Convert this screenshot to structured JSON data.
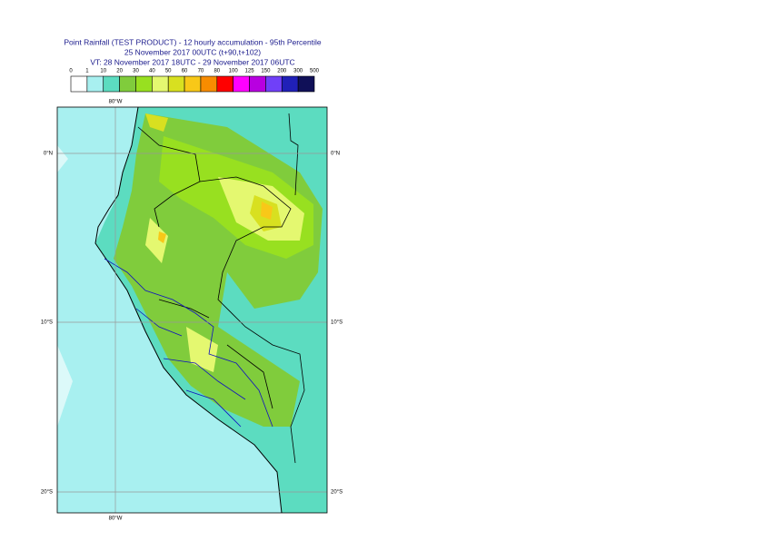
{
  "header": {
    "lines": [
      "Point Rainfall (TEST PRODUCT) - 12 hourly accumulation - 95th Percentile",
      "25 November 2017 00UTC (t+90,t+102)",
      "VT: 28 November 2017 18UTC - 29 November 2017 06UTC"
    ]
  },
  "legend": {
    "bounds": [
      "0",
      "1",
      "10",
      "20",
      "30",
      "40",
      "50",
      "60",
      "70",
      "80",
      "100",
      "125",
      "150",
      "200",
      "300",
      "500"
    ],
    "colors": [
      "#ffffff",
      "#a8f0f0",
      "#5cdcc0",
      "#80cc3c",
      "#98e020",
      "#e4f870",
      "#d8e020",
      "#f8c818",
      "#f88c00",
      "#ff0000",
      "#ff00ff",
      "#b800e0",
      "#7040f8",
      "#2020b8",
      "#101058"
    ]
  },
  "map": {
    "lon_label": "80°W",
    "lat_labels": [
      "0°N",
      "10°S",
      "20°S"
    ]
  }
}
